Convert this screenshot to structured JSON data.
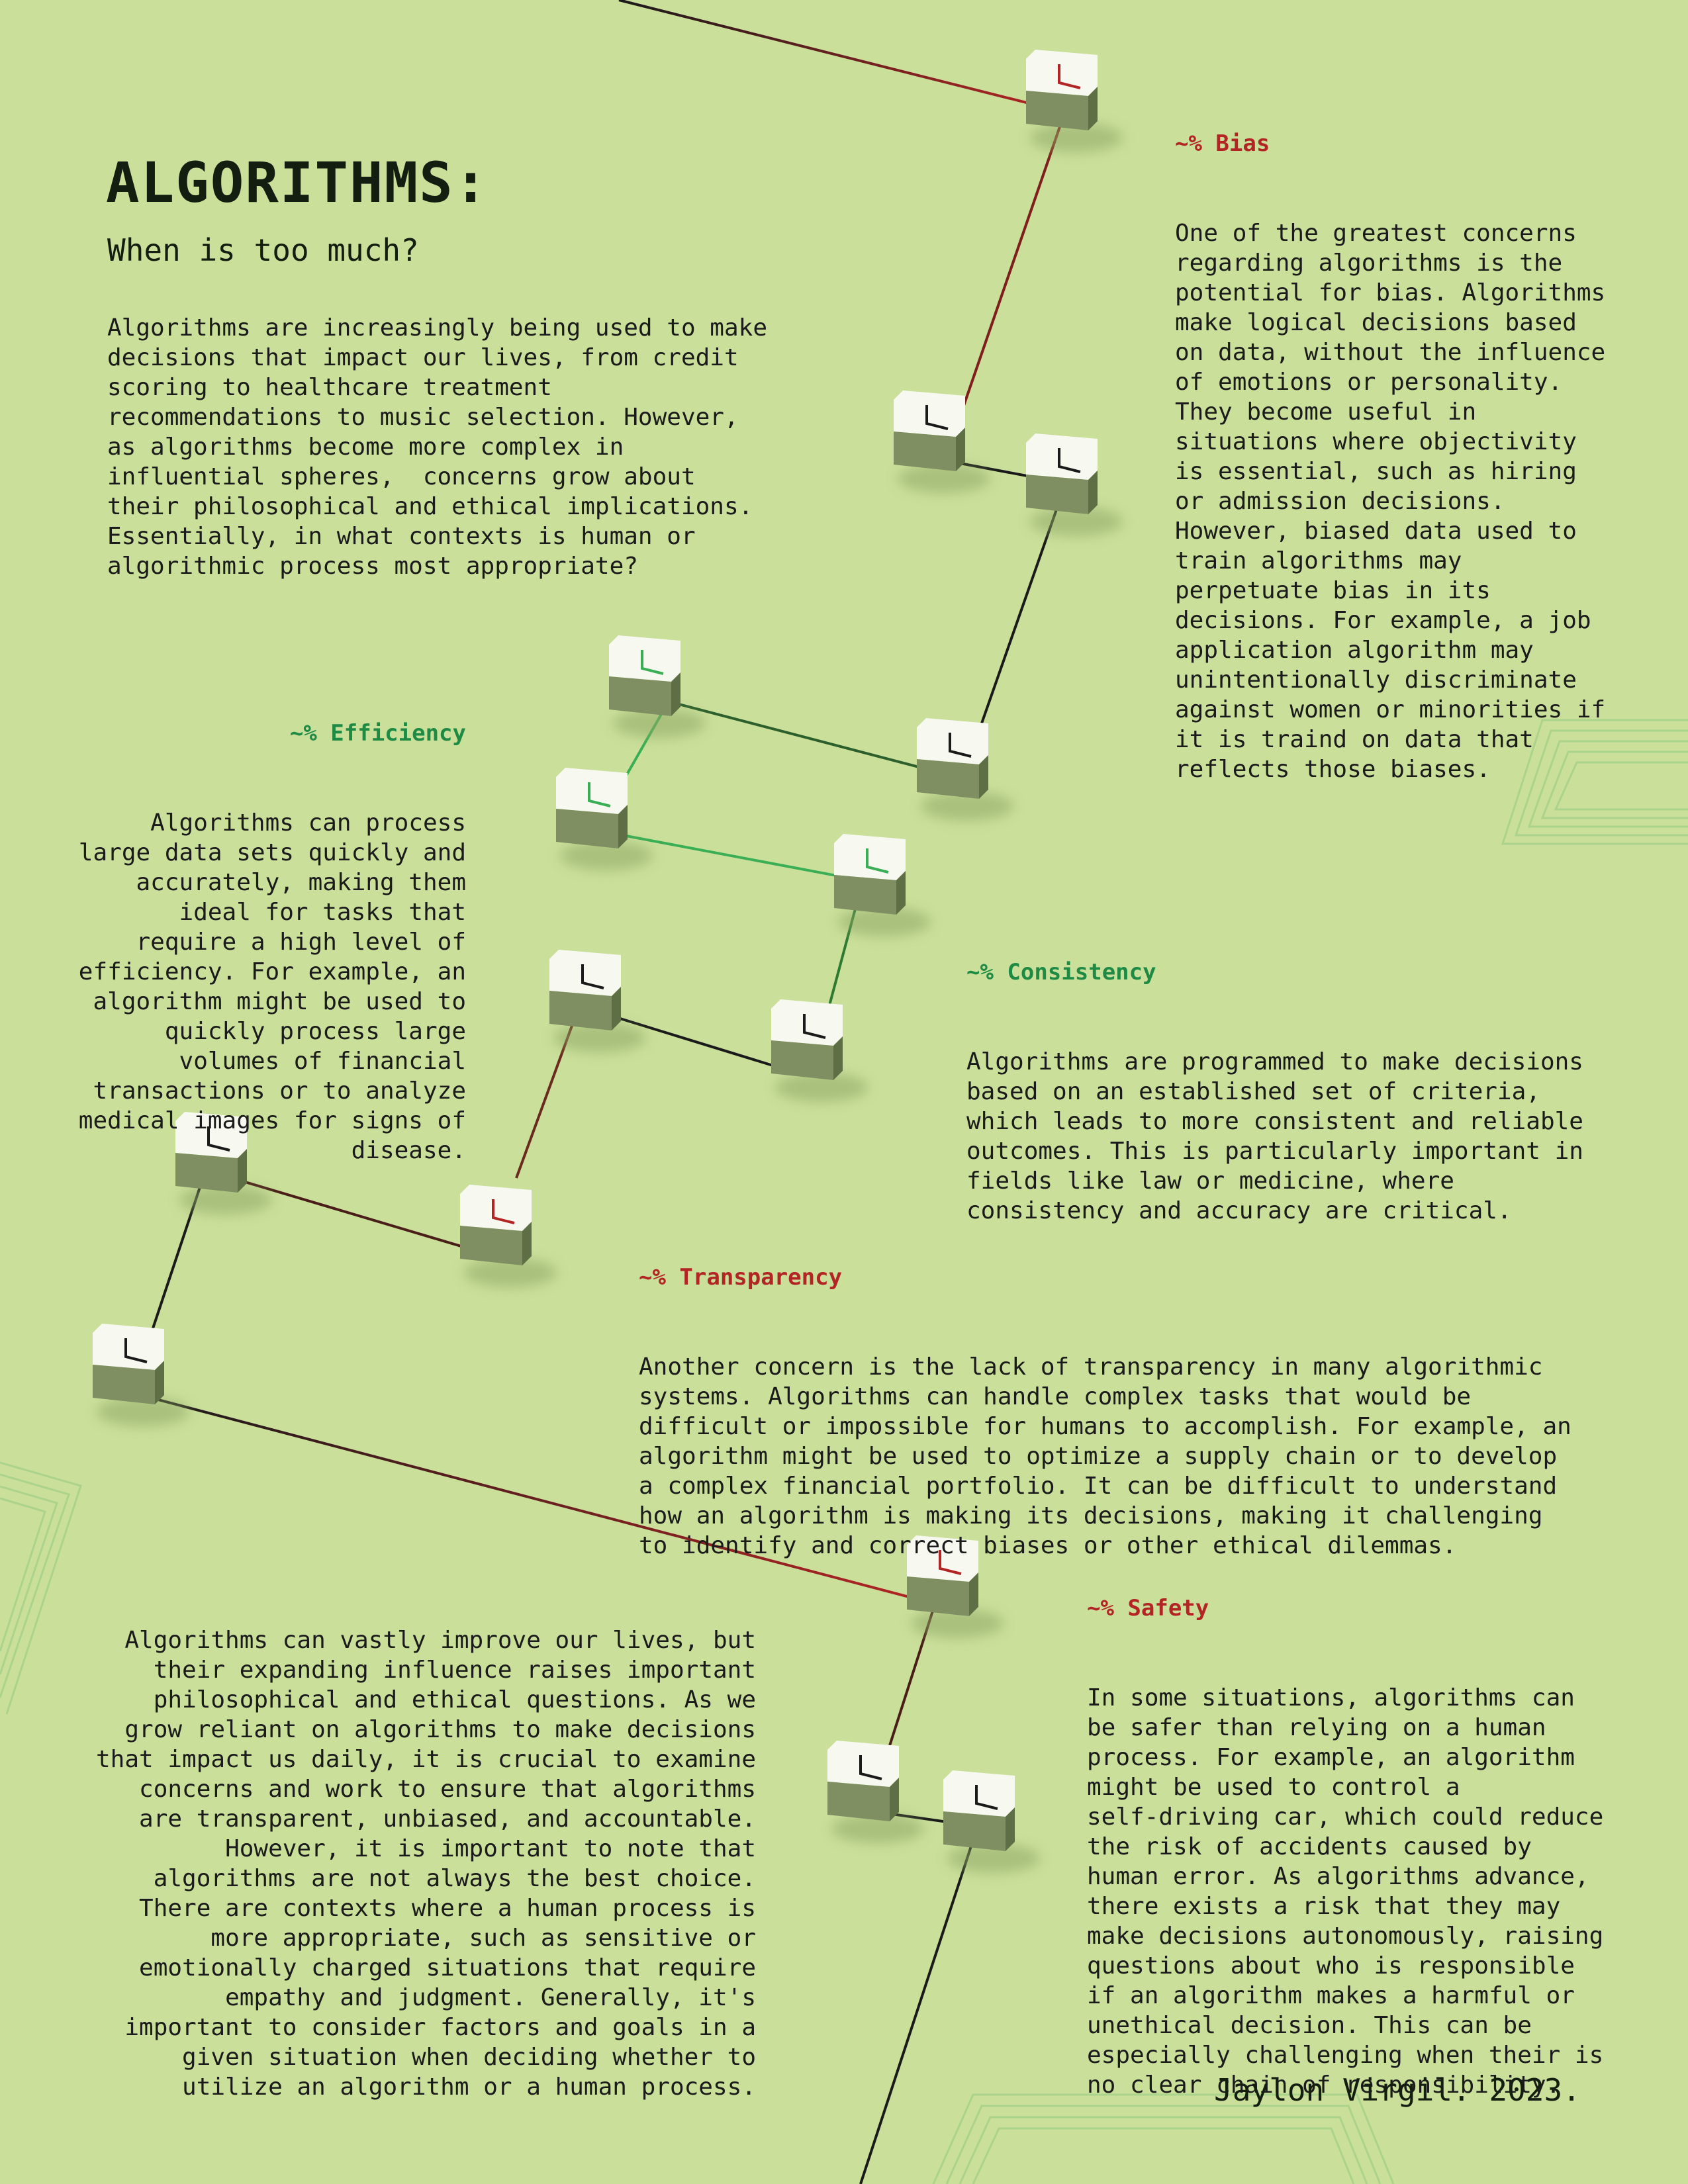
{
  "header": {
    "title": "ALGORITHMS:",
    "subtitle": "When is too much?"
  },
  "intro": {
    "lines": [
      "Algorithms are increasingly being used to make",
      "decisions that impact our lives, from credit",
      "scoring to healthcare treatment",
      "recommendations to music selection. However,",
      "as algorithms become more complex in",
      "influential spheres,  concerns grow about",
      "their philosophical and ethical implications.",
      "Essentially, in what contexts is human or",
      "algorithmic process most appropriate?"
    ]
  },
  "sections": {
    "bias": {
      "heading": "~% Bias",
      "lines": [
        "One of the greatest concerns",
        "regarding algorithms is the",
        "potential for bias. Algorithms",
        "make logical decisions based",
        "on data, without the influence",
        "of emotions or personality.",
        "They become useful in",
        "situations where objectivity",
        "is essential, such as hiring",
        "or admission decisions.",
        "However, biased data used to",
        "train algorithms may",
        "perpetuate bias in its",
        "decisions. For example, a job",
        "application algorithm may",
        "unintentionally discriminate",
        "against women or minorities if",
        "it is traind on data that",
        "reflects those biases."
      ]
    },
    "efficiency": {
      "heading": "~% Efficiency",
      "lines": [
        "Algorithms can process",
        "large data sets quickly and",
        "accurately, making them",
        "ideal for tasks that",
        "require a high level of",
        "efficiency. For example, an",
        "algorithm might be used to",
        "quickly process large",
        "volumes of financial",
        "transactions or to analyze",
        "medical images for signs of",
        "disease."
      ]
    },
    "consistency": {
      "heading": "~% Consistency",
      "lines": [
        "Algorithms are programmed to make decisions",
        "based on an established set of criteria,",
        "which leads to more consistent and reliable",
        "outcomes. This is particularly important in",
        "fields like law or medicine, where",
        "consistency and accuracy are critical."
      ]
    },
    "transparency": {
      "heading": "~% Transparency",
      "lines": [
        "Another concern is the lack of transparency in many algorithmic",
        "systems. Algorithms can handle complex tasks that would be",
        "difficult or impossible for humans to accomplish. For example, an",
        "algorithm might be used to optimize a supply chain or to develop",
        "a complex financial portfolio. It can be difficult to understand",
        "how an algorithm is making its decisions, making it challenging",
        "to identify and correct biases or other ethical dilemmas."
      ]
    },
    "safety": {
      "heading": "~% Safety",
      "lines": [
        "In some situations, algorithms can",
        "be safer than relying on a human",
        "process. For example, an algorithm",
        "might be used to control a",
        "self-driving car, which could reduce",
        "the risk of accidents caused by",
        "human error. As algorithms advance,",
        "there exists a risk that they may",
        "make decisions autonomously, raising",
        "questions about who is responsible",
        "if an algorithm makes a harmful or",
        "unethical decision. This can be",
        "especially challenging when their is",
        "no clear chain of responsibility."
      ]
    }
  },
  "conclusion": {
    "lines": [
      "Algorithms can vastly improve our lives, but",
      "their expanding influence raises important",
      "philosophical and ethical questions. As we",
      "grow reliant on algorithms to make decisions",
      "that impact us daily, it is crucial to examine",
      "concerns and work to ensure that algorithms",
      "are transparent, unbiased, and accountable.",
      "However, it is important to note that",
      "algorithms are not always the best choice.",
      "There are contexts where a human process is",
      "more appropriate, such as sensitive or",
      "emotionally charged situations that require",
      "empathy and judgment. Generally, it's",
      "important to consider factors and goals in a",
      "given situation when deciding whether to",
      "utilize an algorithm or a human process."
    ]
  },
  "signature": "Jaylon Virgil. 2023.",
  "colors": {
    "background": "#c9df9a",
    "accent_red": "#b32424",
    "accent_green": "#1f8a44",
    "cube_top": "#f7f9f0",
    "cube_side": "#7f8f62",
    "cube_side_dark": "#5e6e45",
    "deco_lines": "#a9d28a"
  }
}
